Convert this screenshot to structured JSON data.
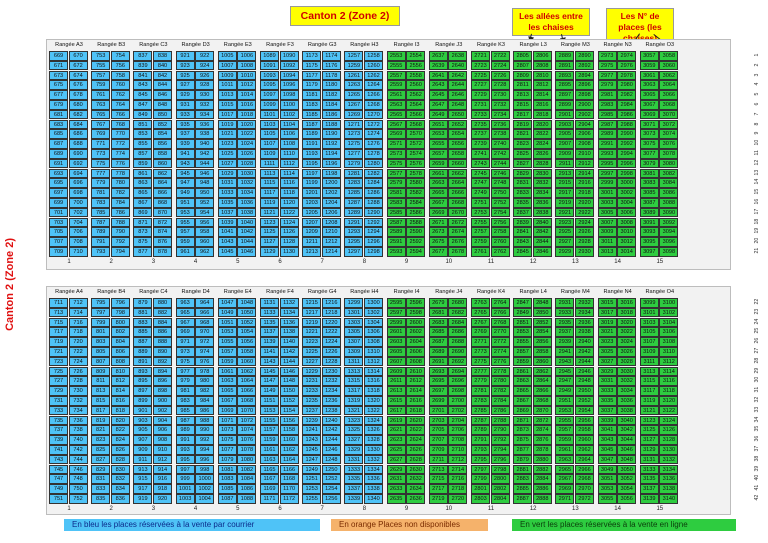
{
  "title": "Canton 2  (Zone 2)",
  "side_label": "Canton 2  (Zone 2)",
  "callouts": {
    "aisles": "Les allées entre les chaises",
    "seat_numbers": "Les N° de places (les chaises)"
  },
  "colors": {
    "blue": "#4fc3f7",
    "green": "#2ecc40",
    "orange": "#f5a623"
  },
  "top_block": {
    "headers": [
      "Rangée A3",
      "Rangée B3",
      "Rangée C3",
      "Rangée D3",
      "Rangée E3",
      "Rangée F3",
      "Rangée G3",
      "Rangée H3",
      "Rangée I3",
      "Rangée J3",
      "Rangée K3",
      "Rangée L3",
      "Rangée M3",
      "Rangée N3",
      "Rangée O3"
    ],
    "row_labels": [
      "1",
      "2",
      "3",
      "4",
      "5",
      "6",
      "7",
      "8",
      "9",
      "10",
      "11",
      "12",
      "13",
      "14",
      "15",
      "16",
      "17",
      "18",
      "19",
      "20",
      "21"
    ],
    "section_numbers": [
      "1",
      "2",
      "3",
      "4",
      "5",
      "6",
      "7",
      "8",
      "9",
      "10",
      "11",
      "12",
      "13",
      "14",
      "15"
    ],
    "first_row_starts": [
      669,
      753,
      837,
      921,
      1005,
      1089,
      1173,
      1257,
      2553,
      2637,
      2721,
      2805,
      2889,
      2973,
      3057
    ],
    "colors": [
      "blue",
      "blue",
      "blue",
      "blue",
      "blue",
      "blue",
      "blue",
      "blue",
      "green",
      "green",
      "green",
      "green",
      "green",
      "green",
      "green"
    ]
  },
  "bottom_block": {
    "headers": [
      "Rangée A4",
      "Rangée B4",
      "Rangée C4",
      "Rangée D4",
      "Rangée E4",
      "Rangée F4",
      "Rangée G4",
      "Rangée H4",
      "Rangée I4",
      "Rangée J4",
      "Rangée K4",
      "Rangée L4",
      "Rangée M4",
      "Rangée N4",
      "Rangée O4"
    ],
    "row_labels": [
      "22",
      "23",
      "24",
      "25",
      "26",
      "27",
      "28",
      "29",
      "30",
      "31",
      "32",
      "33",
      "34",
      "35",
      "36",
      "37",
      "38",
      "39",
      "40",
      "41",
      "42"
    ],
    "section_numbers": [
      "1",
      "2",
      "3",
      "4",
      "5",
      "6",
      "7",
      "8",
      "9",
      "10",
      "11",
      "12",
      "13",
      "14",
      "15"
    ],
    "first_row_starts": [
      711,
      795,
      879,
      963,
      1047,
      1131,
      1215,
      1299,
      2595,
      2679,
      2763,
      2847,
      2931,
      3015,
      3099
    ],
    "colors": [
      "blue",
      "blue",
      "blue",
      "blue",
      "blue",
      "blue",
      "blue",
      "blue",
      "green",
      "green",
      "green",
      "green",
      "green",
      "green",
      "green"
    ]
  },
  "seats_per_row": 2,
  "rows_per_block": 21,
  "legend": {
    "blue": "En bleu les places réservées à la vente par courrier",
    "orange": "En orange Places non disponibles",
    "green": "En vert les places réservées à la vente en ligne"
  }
}
